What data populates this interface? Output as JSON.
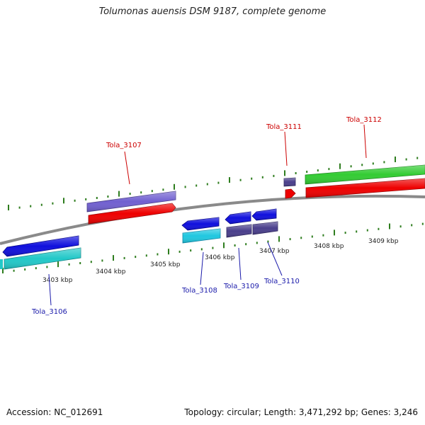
{
  "title": "Tolumonas auensis DSM 9187, complete genome",
  "footer": {
    "accession": "Accession: NC_012691",
    "topology": "Topology: circular; Length: 3,471,292 bp; Genes: 3,246"
  },
  "colors": {
    "backbone": "#8a8a8a",
    "tick": "#2e7d1e",
    "label_top": "#cc0000",
    "label_bottom": "#1a1aaa",
    "gene_blue": "#1010dd",
    "gene_cyan": "#20c8e0",
    "gene_teal": "#22c8c8",
    "gene_navy": "#4a3f8c",
    "gene_purple": "#7060d0",
    "gene_red": "#ee0000",
    "gene_green": "#33cc33"
  },
  "scale_labels": [
    "3403 kbp",
    "3404 kbp",
    "3405 kbp",
    "3406 kbp",
    "3407 kbp",
    "3408 kbp",
    "3409 kbp"
  ],
  "gene_labels": {
    "tola_3106": "Tola_3106",
    "tola_3107": "Tola_3107",
    "tola_3108": "Tola_3108",
    "tola_3109": "Tola_3109",
    "tola_3110": "Tola_3110",
    "tola_3111": "Tola_3111",
    "tola_3112": "Tola_3112"
  }
}
